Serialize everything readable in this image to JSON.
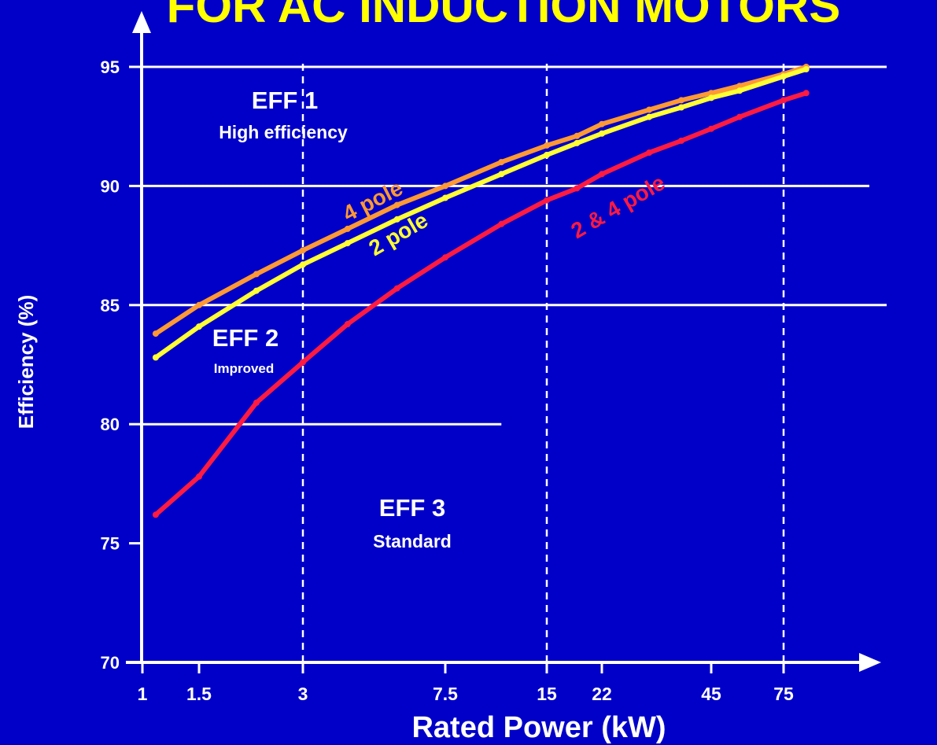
{
  "title": "FOR AC INDUCTION MOTORS",
  "chart_data": {
    "type": "line",
    "xlabel": "Rated Power (kW)",
    "ylabel": "Efficiency (%)",
    "x_scale": "log",
    "x_ticks": [
      "1",
      "1.5",
      "3",
      "7.5",
      "15",
      "22",
      "45",
      "75"
    ],
    "y_ticks": [
      "70",
      "75",
      "80",
      "85",
      "90",
      "95"
    ],
    "ylim": [
      70,
      95
    ],
    "series": [
      {
        "name": "4 pole",
        "color": "#ff9933",
        "points": [
          [
            1.1,
            83.8
          ],
          [
            1.5,
            85.0
          ],
          [
            2.2,
            86.3
          ],
          [
            3,
            87.3
          ],
          [
            4,
            88.2
          ],
          [
            5.5,
            89.2
          ],
          [
            7.5,
            90.0
          ],
          [
            11,
            91.0
          ],
          [
            15,
            91.7
          ],
          [
            18.5,
            92.1
          ],
          [
            22,
            92.6
          ],
          [
            30,
            93.2
          ],
          [
            37,
            93.6
          ],
          [
            45,
            93.9
          ],
          [
            55,
            94.2
          ],
          [
            75,
            94.7
          ],
          [
            90,
            95.0
          ]
        ]
      },
      {
        "name": "2 pole",
        "color": "#ffff33",
        "points": [
          [
            1.1,
            82.8
          ],
          [
            1.5,
            84.1
          ],
          [
            2.2,
            85.6
          ],
          [
            3,
            86.7
          ],
          [
            4,
            87.6
          ],
          [
            5.5,
            88.6
          ],
          [
            7.5,
            89.5
          ],
          [
            11,
            90.5
          ],
          [
            15,
            91.3
          ],
          [
            18.5,
            91.8
          ],
          [
            22,
            92.2
          ],
          [
            30,
            92.9
          ],
          [
            37,
            93.3
          ],
          [
            45,
            93.7
          ],
          [
            55,
            94.0
          ],
          [
            75,
            94.6
          ],
          [
            90,
            94.9
          ]
        ]
      },
      {
        "name": "2 & 4 pole",
        "color": "#ff1a40",
        "points": [
          [
            1.1,
            76.2
          ],
          [
            1.5,
            77.8
          ],
          [
            2.2,
            80.9
          ],
          [
            3,
            82.6
          ],
          [
            4,
            84.2
          ],
          [
            5.5,
            85.7
          ],
          [
            7.5,
            87.0
          ],
          [
            11,
            88.4
          ],
          [
            15,
            89.4
          ],
          [
            18.5,
            89.9
          ],
          [
            22,
            90.5
          ],
          [
            30,
            91.4
          ],
          [
            37,
            91.9
          ],
          [
            45,
            92.4
          ],
          [
            55,
            92.9
          ],
          [
            75,
            93.6
          ],
          [
            90,
            93.9
          ]
        ]
      }
    ],
    "thresholds": [
      {
        "efficiency": 95,
        "to_power": 200
      },
      {
        "efficiency": 90,
        "to_power": 150
      },
      {
        "efficiency": 85,
        "to_power": 200
      },
      {
        "efficiency": 80,
        "to_power": 11
      }
    ],
    "vertical_dashed_lines": [
      3,
      15,
      75
    ],
    "zones": [
      {
        "title": "EFF 1",
        "subtitle": "High efficiency"
      },
      {
        "title": "EFF 2",
        "subtitle": "Improved"
      },
      {
        "title": "EFF 3",
        "subtitle": "Standard"
      }
    ],
    "colors": {
      "background": "#0000c8",
      "axis": "#ffffff",
      "title": "#ffff00"
    }
  }
}
